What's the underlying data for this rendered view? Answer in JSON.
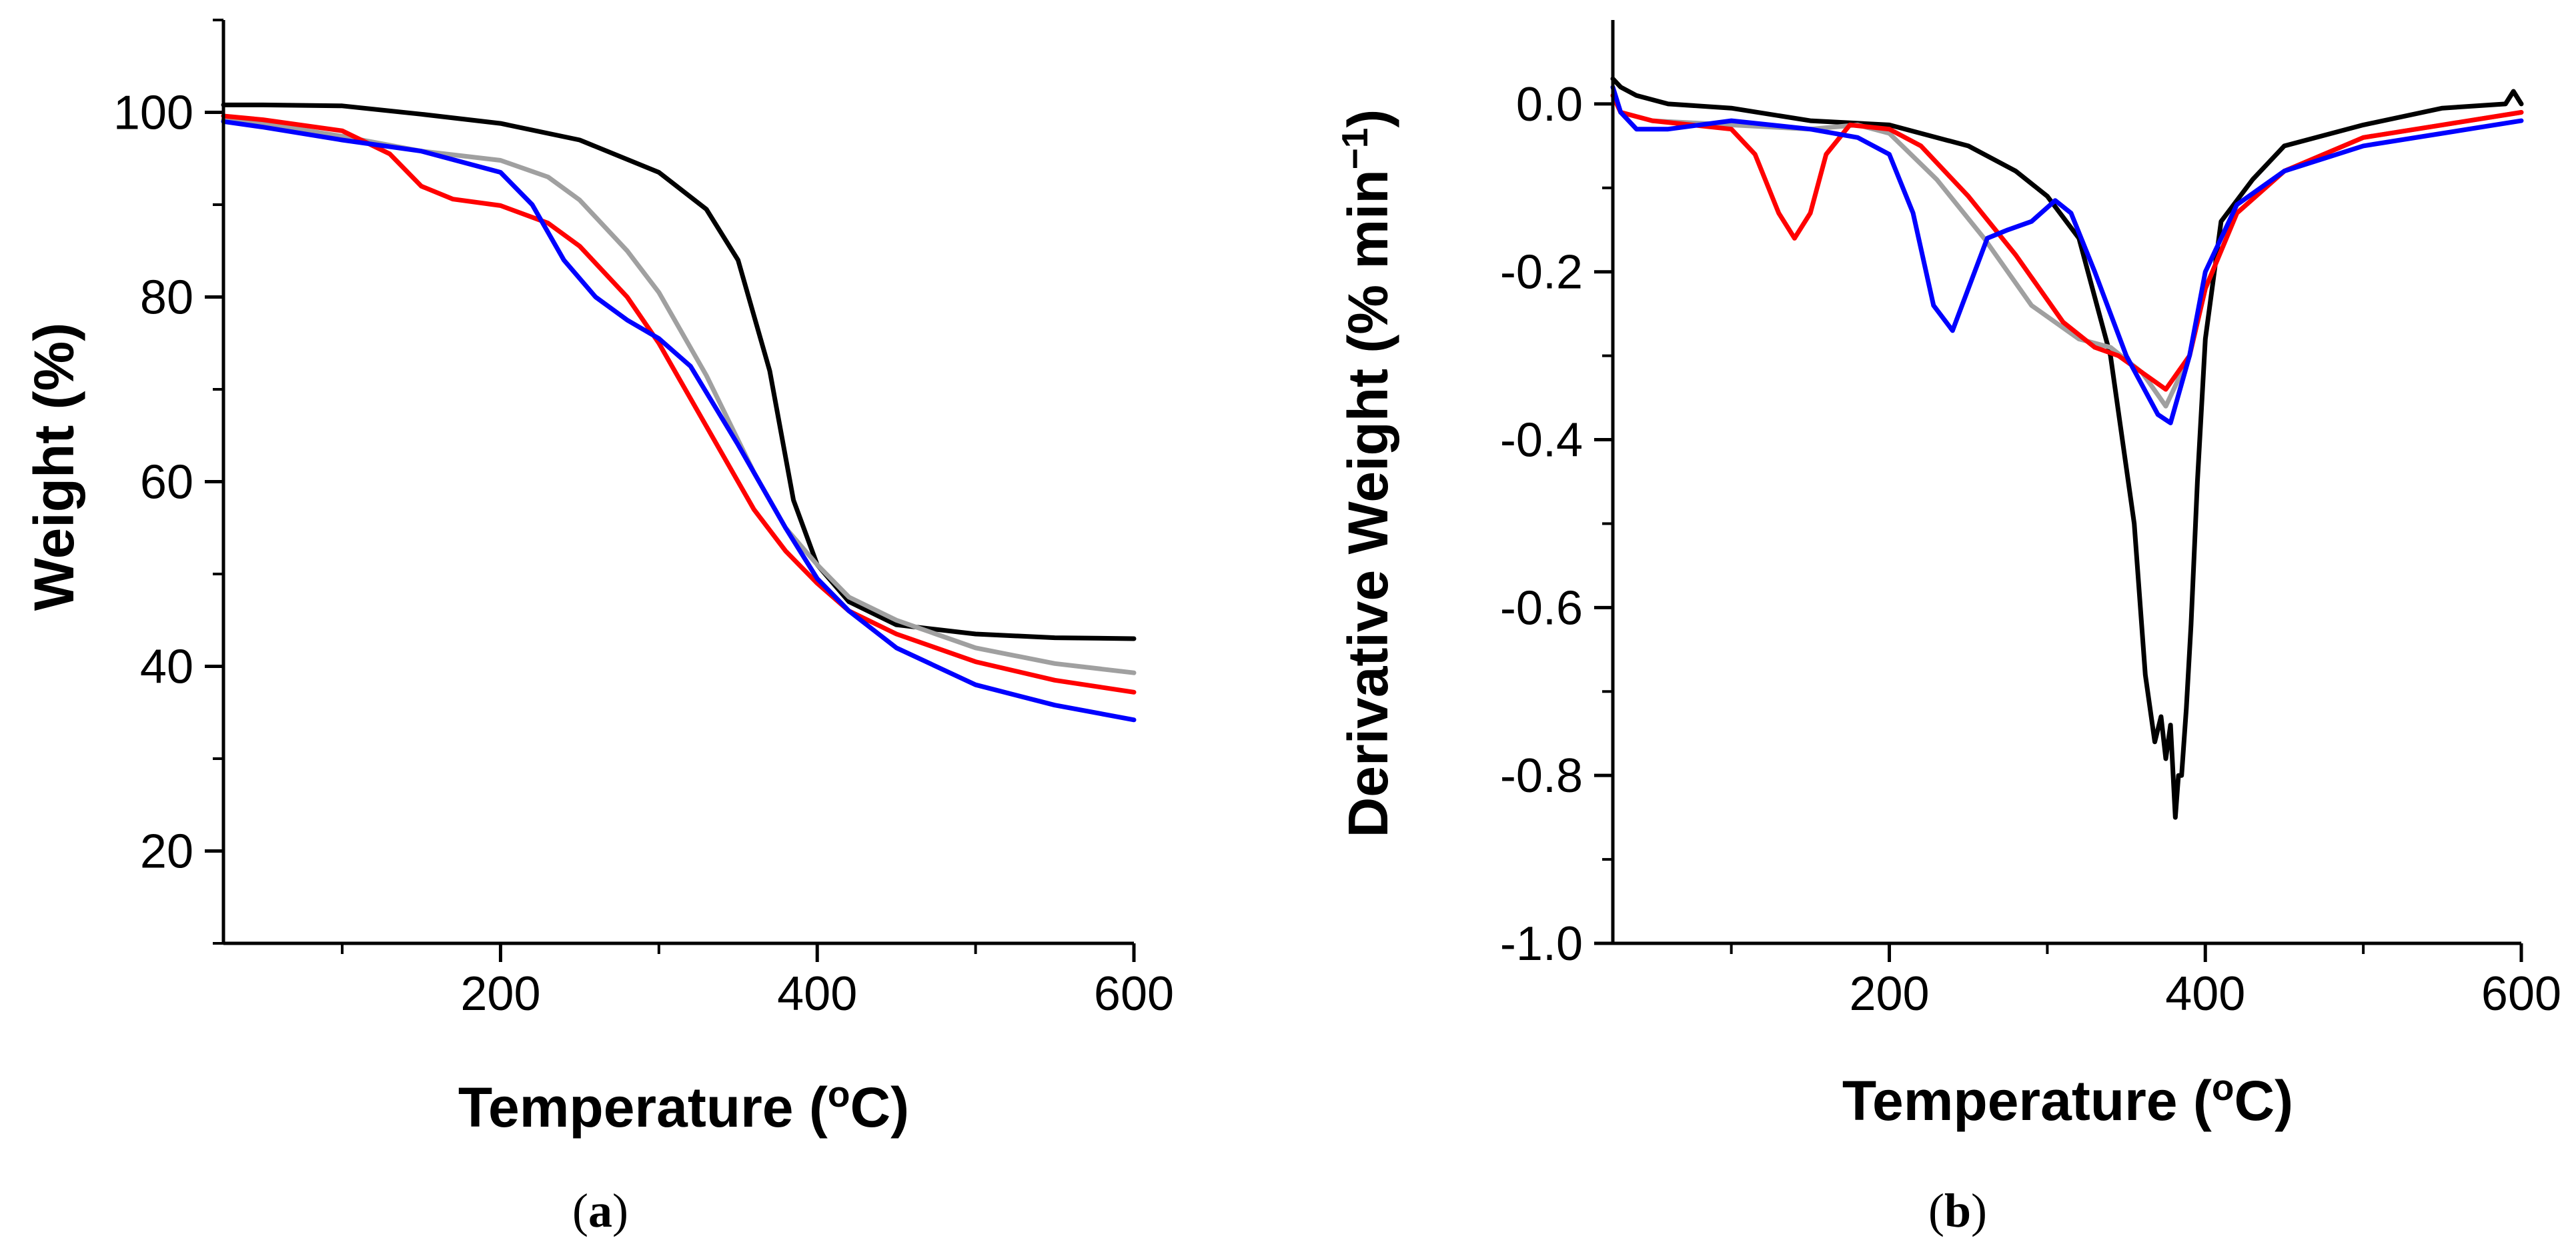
{
  "chart_data": [
    {
      "type": "line",
      "panel_label": "a",
      "xlabel": "Temperature (",
      "xlabel_sup": "o",
      "xlabel_end": "C)",
      "ylabel": "Weight (%)",
      "xlim": [
        25,
        600
      ],
      "ylim": [
        10,
        110
      ],
      "xticks": [
        200,
        400,
        600
      ],
      "xtick_labels": [
        "200",
        "400",
        "600"
      ],
      "xticks_minor": [
        100,
        300,
        500
      ],
      "yticks": [
        20,
        40,
        60,
        80,
        100
      ],
      "ytick_labels": [
        "20",
        "40",
        "60",
        "80",
        "100"
      ],
      "yticks_minor": [
        10,
        30,
        50,
        70,
        90,
        110
      ],
      "series": [
        {
          "name": "black",
          "color": "#000000",
          "x": [
            25,
            50,
            100,
            150,
            200,
            250,
            300,
            330,
            350,
            370,
            385,
            400,
            420,
            450,
            500,
            550,
            600
          ],
          "y": [
            100.8,
            100.8,
            100.7,
            99.8,
            98.8,
            97,
            93.5,
            89.5,
            84,
            72,
            58,
            51,
            47,
            44.5,
            43.5,
            43.1,
            43
          ]
        },
        {
          "name": "gray",
          "color": "#a0a0a0",
          "x": [
            25,
            50,
            100,
            150,
            200,
            230,
            250,
            280,
            300,
            330,
            360,
            380,
            400,
            420,
            450,
            500,
            550,
            600
          ],
          "y": [
            99.2,
            98.8,
            97.4,
            95.8,
            94.8,
            93,
            90.5,
            85,
            80.5,
            71.5,
            61,
            55,
            51,
            47.5,
            45,
            42,
            40.3,
            39.3
          ]
        },
        {
          "name": "red",
          "color": "#ff0000",
          "x": [
            25,
            50,
            100,
            130,
            150,
            170,
            200,
            230,
            250,
            280,
            300,
            330,
            360,
            380,
            400,
            420,
            450,
            500,
            550,
            600
          ],
          "y": [
            99.6,
            99.2,
            98,
            95.5,
            92,
            90.6,
            89.9,
            88,
            85.5,
            80,
            75,
            66,
            57,
            52.5,
            49,
            46,
            43.5,
            40.5,
            38.5,
            37.2
          ]
        },
        {
          "name": "blue",
          "color": "#0000ff",
          "x": [
            25,
            50,
            100,
            150,
            200,
            220,
            240,
            260,
            280,
            300,
            320,
            350,
            380,
            400,
            420,
            450,
            500,
            550,
            600
          ],
          "y": [
            99,
            98.4,
            97,
            95.8,
            93.5,
            90,
            84,
            80,
            77.5,
            75.5,
            72.5,
            64,
            55,
            49.5,
            46,
            42,
            38,
            35.8,
            34.2
          ]
        }
      ]
    },
    {
      "type": "line",
      "panel_label": "b",
      "xlabel": "Temperature (",
      "xlabel_sup": "o",
      "xlabel_end": "C)",
      "ylabel": "Derivative Weight (% min",
      "ylabel_sup": "−1",
      "ylabel_end": ")",
      "xlim": [
        25,
        600
      ],
      "ylim": [
        -1.0,
        0.1
      ],
      "xticks": [
        200,
        400,
        600
      ],
      "xtick_labels": [
        "200",
        "400",
        "600"
      ],
      "xticks_minor": [
        100,
        300,
        500
      ],
      "yticks": [
        -1.0,
        -0.8,
        -0.6,
        -0.4,
        -0.2,
        0.0
      ],
      "ytick_labels": [
        "-1.0",
        "-0.8",
        "-0.6",
        "-0.4",
        "-0.2",
        "0.0"
      ],
      "yticks_minor": [
        -0.9,
        -0.7,
        -0.5,
        -0.3,
        -0.1
      ],
      "series": [
        {
          "name": "black",
          "color": "#000000",
          "x": [
            25,
            30,
            40,
            60,
            100,
            150,
            200,
            250,
            280,
            300,
            320,
            340,
            355,
            362,
            368,
            372,
            375,
            378,
            381,
            383,
            385,
            388,
            391,
            395,
            400,
            410,
            430,
            450,
            500,
            550,
            590,
            595,
            600
          ],
          "y": [
            0.03,
            0.02,
            0.01,
            0.0,
            -0.005,
            -0.02,
            -0.025,
            -0.05,
            -0.08,
            -0.11,
            -0.16,
            -0.3,
            -0.5,
            -0.68,
            -0.76,
            -0.73,
            -0.78,
            -0.74,
            -0.85,
            -0.8,
            -0.8,
            -0.72,
            -0.62,
            -0.45,
            -0.28,
            -0.14,
            -0.09,
            -0.05,
            -0.025,
            -0.005,
            0.0,
            0.015,
            0.0
          ]
        },
        {
          "name": "gray",
          "color": "#a0a0a0",
          "x": [
            25,
            30,
            50,
            100,
            150,
            180,
            200,
            230,
            260,
            290,
            320,
            340,
            360,
            375,
            390,
            400,
            420,
            450,
            500,
            550,
            600
          ],
          "y": [
            0.01,
            -0.01,
            -0.02,
            -0.025,
            -0.03,
            -0.025,
            -0.035,
            -0.09,
            -0.16,
            -0.24,
            -0.28,
            -0.29,
            -0.32,
            -0.36,
            -0.3,
            -0.22,
            -0.13,
            -0.08,
            -0.04,
            -0.025,
            -0.01
          ]
        },
        {
          "name": "red",
          "color": "#ff0000",
          "x": [
            25,
            30,
            50,
            100,
            115,
            130,
            140,
            150,
            160,
            175,
            200,
            220,
            250,
            280,
            310,
            330,
            345,
            360,
            375,
            390,
            400,
            420,
            450,
            500,
            550,
            600
          ],
          "y": [
            0.01,
            -0.01,
            -0.02,
            -0.03,
            -0.06,
            -0.13,
            -0.16,
            -0.13,
            -0.06,
            -0.025,
            -0.03,
            -0.05,
            -0.11,
            -0.18,
            -0.26,
            -0.29,
            -0.3,
            -0.32,
            -0.34,
            -0.3,
            -0.22,
            -0.13,
            -0.08,
            -0.04,
            -0.025,
            -0.01
          ]
        },
        {
          "name": "blue",
          "color": "#0000ff",
          "x": [
            25,
            30,
            40,
            60,
            100,
            150,
            180,
            200,
            215,
            228,
            240,
            250,
            262,
            275,
            290,
            305,
            315,
            330,
            350,
            370,
            378,
            390,
            400,
            420,
            450,
            500,
            550,
            600
          ],
          "y": [
            0.02,
            -0.01,
            -0.03,
            -0.03,
            -0.02,
            -0.03,
            -0.04,
            -0.06,
            -0.13,
            -0.24,
            -0.27,
            -0.22,
            -0.16,
            -0.15,
            -0.14,
            -0.115,
            -0.13,
            -0.2,
            -0.3,
            -0.37,
            -0.38,
            -0.3,
            -0.2,
            -0.12,
            -0.08,
            -0.05,
            -0.035,
            -0.02
          ]
        }
      ]
    }
  ],
  "captions": {
    "a": "(a)",
    "b": "(b)"
  }
}
